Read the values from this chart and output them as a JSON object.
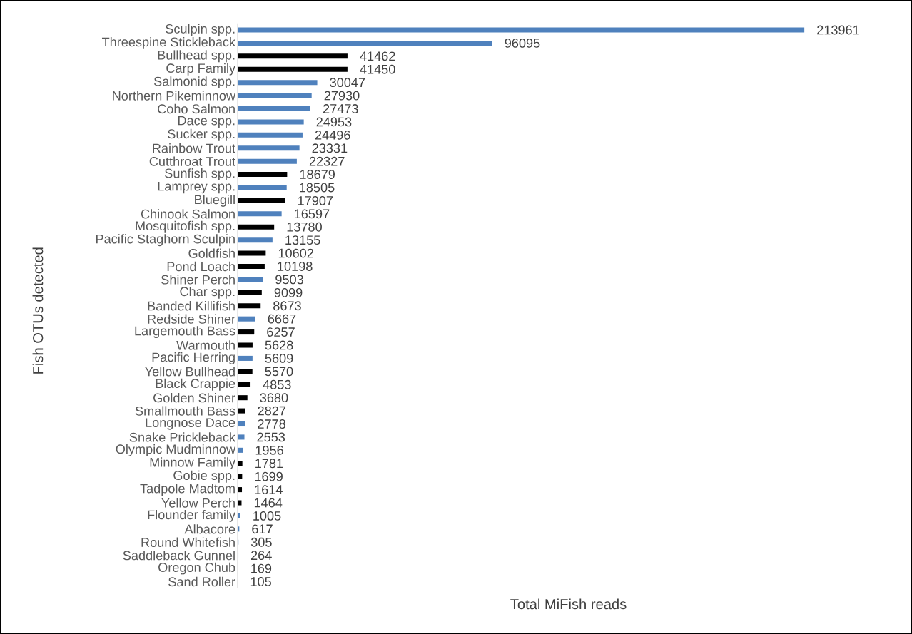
{
  "chart_data": {
    "type": "bar",
    "orientation": "horizontal",
    "xlabel": "Total MiFish reads",
    "ylabel": "Fish OTUs detected",
    "categories": [
      "Sculpin spp.",
      "Threespine Stickleback",
      "Bullhead spp.",
      "Carp Family",
      "Salmonid spp.",
      "Northern Pikeminnow",
      "Coho Salmon",
      "Dace spp.",
      "Sucker spp.",
      "Rainbow Trout",
      "Cutthroat Trout",
      "Sunfish spp.",
      "Lamprey spp.",
      "Bluegill",
      "Chinook Salmon",
      "Mosquitofish spp.",
      "Pacific Staghorn Sculpin",
      "Goldfish",
      "Pond Loach",
      "Shiner Perch",
      "Char spp.",
      "Banded Killifish",
      "Redside Shiner",
      "Largemouth Bass",
      "Warmouth",
      "Pacific Herring",
      "Yellow Bullhead",
      "Black Crappie",
      "Golden Shiner",
      "Smallmouth Bass",
      "Longnose Dace",
      "Snake Prickleback",
      "Olympic Mudminnow",
      "Minnow Family",
      "Gobie spp.",
      "Tadpole Madtom",
      "Yellow Perch",
      "Flounder family",
      "Albacore",
      "Round Whitefish",
      "Saddleback Gunnel",
      "Oregon Chub",
      "Sand Roller"
    ],
    "values": [
      213961,
      96095,
      41462,
      41450,
      30047,
      27930,
      27473,
      24953,
      24496,
      23331,
      22327,
      18679,
      18505,
      17907,
      16597,
      13780,
      13155,
      10602,
      10198,
      9503,
      9099,
      8673,
      6667,
      6257,
      5628,
      5609,
      5570,
      4853,
      3680,
      2827,
      2778,
      2553,
      1956,
      1781,
      1699,
      1614,
      1464,
      1005,
      617,
      305,
      264,
      169,
      105
    ],
    "colors": [
      "#4f81bd",
      "#4f81bd",
      "#000000",
      "#000000",
      "#4f81bd",
      "#4f81bd",
      "#4f81bd",
      "#4f81bd",
      "#4f81bd",
      "#4f81bd",
      "#4f81bd",
      "#000000",
      "#4f81bd",
      "#000000",
      "#4f81bd",
      "#000000",
      "#4f81bd",
      "#000000",
      "#000000",
      "#4f81bd",
      "#000000",
      "#000000",
      "#4f81bd",
      "#000000",
      "#000000",
      "#4f81bd",
      "#000000",
      "#000000",
      "#000000",
      "#000000",
      "#4f81bd",
      "#4f81bd",
      "#4f81bd",
      "#000000",
      "#000000",
      "#000000",
      "#000000",
      "#4f81bd",
      "#4f81bd",
      "#4f81bd",
      "#4f81bd",
      "#4f81bd",
      "#4f81bd"
    ],
    "data_labels": true
  }
}
